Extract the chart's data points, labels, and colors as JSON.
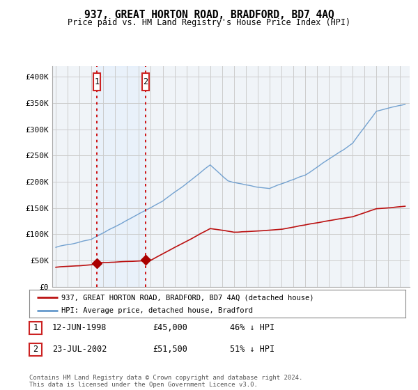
{
  "title": "937, GREAT HORTON ROAD, BRADFORD, BD7 4AQ",
  "subtitle": "Price paid vs. HM Land Registry's House Price Index (HPI)",
  "ylim": [
    0,
    420000
  ],
  "xlim_start": 1994.7,
  "xlim_end": 2024.8,
  "yticks": [
    0,
    50000,
    100000,
    150000,
    200000,
    250000,
    300000,
    350000,
    400000
  ],
  "ytick_labels": [
    "£0",
    "£50K",
    "£100K",
    "£150K",
    "£200K",
    "£250K",
    "£300K",
    "£350K",
    "£400K"
  ],
  "xticks": [
    1995,
    1996,
    1997,
    1998,
    1999,
    2000,
    2001,
    2002,
    2003,
    2004,
    2005,
    2006,
    2007,
    2008,
    2009,
    2010,
    2011,
    2012,
    2013,
    2014,
    2015,
    2016,
    2017,
    2018,
    2019,
    2020,
    2021,
    2022,
    2023,
    2024
  ],
  "transaction1_x": 1998.44,
  "transaction1_y": 45000,
  "transaction1_label": "1",
  "transaction1_date": "12-JUN-1998",
  "transaction1_price": "£45,000",
  "transaction1_hpi": "46% ↓ HPI",
  "transaction2_x": 2002.55,
  "transaction2_y": 51500,
  "transaction2_label": "2",
  "transaction2_date": "23-JUL-2002",
  "transaction2_price": "£51,500",
  "transaction2_hpi": "51% ↓ HPI",
  "vline_color": "#cc0000",
  "vline_style": ":",
  "shade_color": "#ddeeff",
  "hpi_line_color": "#6699cc",
  "price_line_color": "#bb1111",
  "marker_color": "#aa0000",
  "box_color": "#cc2222",
  "legend_label_price": "937, GREAT HORTON ROAD, BRADFORD, BD7 4AQ (detached house)",
  "legend_label_hpi": "HPI: Average price, detached house, Bradford",
  "footer": "Contains HM Land Registry data © Crown copyright and database right 2024.\nThis data is licensed under the Open Government Licence v3.0.",
  "background_color": "#ffffff",
  "plot_bg_color": "#f0f4f8"
}
